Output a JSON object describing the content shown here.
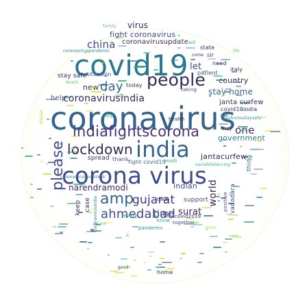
{
  "words": {
    "coronavirus": "coronavirus",
    "covid19": "covid19",
    "corona_virus": "corona virus",
    "india": "india",
    "indiafightscorona": "indiafightscorona",
    "people": "people",
    "lockdown": "lockdown",
    "please": "please",
    "amp": "amp",
    "ahmedabad": "ahmedabad",
    "gujarat": "gujarat",
    "day": "day",
    "china": "china",
    "virus": "virus",
    "coronavirusindia": "coronavirusindia",
    "fight_coronavirus": "fight coronavirus",
    "coronavirusupdate": "coronavirusupdate",
    "stay_home": "stay home",
    "janta_curfew_top": "janta curfew",
    "government": "government",
    "country": "country",
    "one": "one",
    "jantacurfew": "jantacurfew",
    "narendramodi": "narendramodi",
    "indian": "indian",
    "surat": "surat",
    "time": "time",
    "new": "new",
    "help": "help",
    "spread": "spread",
    "thank": "thank",
    "fight_covid19": "fight covid19",
    "stay_safe": "stay safe",
    "situation": "situation",
    "today": "today",
    "let": "let",
    "need": "need",
    "patient": "patient",
    "italy": "italy",
    "state": "state",
    "support": "support",
    "world": "world",
    "together": "together",
    "covid2019": "covid2019",
    "pandemic": "pandemic",
    "know": "know",
    "vadodara": "vadodara",
    "stop": "stop",
    "health": "health",
    "may": "may",
    "covid19india": "covid19india",
    "taking": "taking",
    "thing": "thing",
    "city": "city",
    "take": "take",
    "keep": "keep",
    "case": "case",
    "home": "home",
    "good": "good",
    "coronavirusoutbreak": "coronavirusoutbreak",
    "coronaviruspandemic": "coronaviruspandemic",
    "socialdistancing": "socialdistancing",
    "stayhomestaysafe": "stayhomestaysafe",
    "sir": "sir",
    "come": "come",
    "modi": "modi",
    "coronavirusindia_small": "coronavirusindia",
    "every": "every",
    "positive": "positive",
    "death": "death",
    "life": "life",
    "will": "will",
    "even": "even",
    "please_small": "please",
    "work": "work",
    "family": "family"
  },
  "palette": {
    "navy": "#35285b",
    "blue": "#33638d",
    "teal": "#2a788e",
    "aqua": "#21918c",
    "green": "#29af7f",
    "lime": "#5ec962",
    "yellowgreen": "#b0dd2f",
    "yellow": "#dfe318",
    "purple": "#46327e",
    "slate": "#3e4a89"
  }
}
